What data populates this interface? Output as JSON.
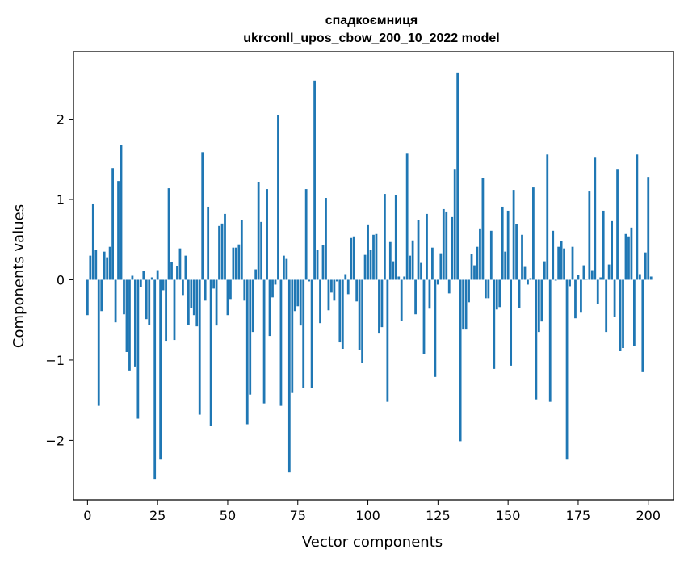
{
  "chart_data": {
    "type": "bar",
    "title_line1": "спадкоємниця",
    "title_line2": "ukrconll_upos_cbow_200_10_2022 model",
    "xlabel": "Vector components",
    "ylabel": "Components values",
    "xlim": [
      -5,
      209
    ],
    "ylim": [
      -2.74,
      2.84
    ],
    "xticks": [
      0,
      25,
      50,
      75,
      100,
      125,
      150,
      175,
      200
    ],
    "yticks": [
      -2,
      -1,
      0,
      1,
      2
    ],
    "ytick_labels": [
      "−2",
      "−1",
      "0",
      "1",
      "2"
    ],
    "bar_color": "#1f77b4",
    "grid": false,
    "values": [
      -0.44,
      0.3,
      0.94,
      0.37,
      -1.57,
      -0.39,
      0.35,
      0.28,
      0.41,
      1.39,
      -0.53,
      1.23,
      1.68,
      -0.43,
      -0.9,
      -1.13,
      0.05,
      -1.08,
      -1.73,
      -0.09,
      0.11,
      -0.49,
      -0.56,
      0.03,
      -2.48,
      0.12,
      -2.24,
      -0.13,
      -0.76,
      1.14,
      0.22,
      -0.75,
      0.17,
      0.39,
      -0.19,
      0.3,
      -0.56,
      -0.35,
      -0.44,
      -0.58,
      -1.68,
      1.59,
      -0.26,
      0.91,
      -1.82,
      -0.11,
      -0.57,
      0.67,
      0.7,
      0.82,
      -0.44,
      -0.24,
      0.4,
      0.4,
      0.44,
      0.74,
      -0.26,
      -1.8,
      -1.43,
      -0.65,
      0.13,
      1.22,
      0.72,
      -1.54,
      1.13,
      -0.7,
      -0.22,
      -0.06,
      2.05,
      -1.57,
      0.3,
      0.26,
      -2.4,
      -1.41,
      -0.39,
      -0.33,
      -0.57,
      -1.35,
      1.13,
      -0.02,
      -1.35,
      2.48,
      0.37,
      -0.54,
      0.43,
      1.02,
      -0.38,
      -0.16,
      -0.26,
      -0.02,
      -0.78,
      -0.86,
      0.07,
      -0.18,
      0.52,
      0.54,
      -0.27,
      -0.87,
      -1.04,
      0.31,
      0.68,
      0.37,
      0.56,
      0.57,
      -0.67,
      -0.59,
      1.07,
      -1.52,
      0.47,
      0.23,
      1.06,
      0.04,
      -0.51,
      0.04,
      1.57,
      0.3,
      0.49,
      -0.43,
      0.74,
      0.21,
      -0.93,
      0.82,
      -0.36,
      0.4,
      -1.21,
      -0.06,
      0.33,
      0.88,
      0.85,
      -0.17,
      0.78,
      1.38,
      2.58,
      -2.01,
      -0.62,
      -0.62,
      -0.28,
      0.32,
      0.18,
      0.41,
      0.64,
      1.27,
      -0.23,
      -0.23,
      0.61,
      -1.11,
      -0.37,
      -0.34,
      0.91,
      0.35,
      0.86,
      -1.07,
      1.12,
      0.69,
      -0.35,
      0.56,
      0.16,
      -0.06,
      0.02,
      1.15,
      -1.49,
      -0.65,
      -0.52,
      0.23,
      1.56,
      -1.52,
      0.61,
      -0.01,
      0.41,
      0.48,
      0.39,
      -2.24,
      -0.08,
      0.41,
      -0.48,
      0.06,
      -0.41,
      0.18,
      0.0,
      1.1,
      0.12,
      1.52,
      -0.3,
      0.03,
      0.86,
      -0.65,
      0.19,
      0.73,
      -0.46,
      1.38,
      -0.89,
      -0.85,
      0.57,
      0.54,
      0.65,
      -0.82,
      1.56,
      0.07,
      -1.15,
      0.34,
      1.28,
      0.04
    ]
  }
}
